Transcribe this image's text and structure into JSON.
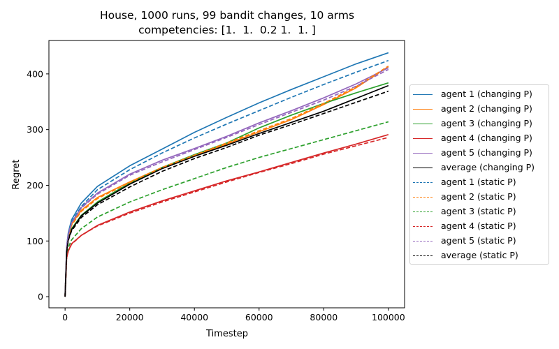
{
  "chart_data": {
    "type": "line",
    "title": "House, 1000 runs, 99 bandit changes, 10 arms",
    "subtitle": "competencies: [1.  1.  0.2 1.  1. ]",
    "xlabel": "Timestep",
    "ylabel": "Regret",
    "xlim": [
      -5000,
      105000
    ],
    "ylim": [
      -20,
      460
    ],
    "xticks": [
      0,
      20000,
      40000,
      60000,
      80000,
      100000
    ],
    "yticks": [
      0,
      100,
      200,
      300,
      400
    ],
    "grid": false,
    "legend_position": "right, outside plot",
    "x": [
      0,
      500,
      1000,
      2000,
      5000,
      10000,
      20000,
      30000,
      40000,
      50000,
      60000,
      70000,
      80000,
      90000,
      100000
    ],
    "series": [
      {
        "name": "agent 1 (changing P)",
        "color": "#1f77b4",
        "style": "solid",
        "values": [
          0,
          90,
          115,
          138,
          168,
          198,
          235,
          265,
          295,
          322,
          348,
          372,
          395,
          418,
          438
        ]
      },
      {
        "name": "agent 2 (changing P)",
        "color": "#ff7f0e",
        "style": "solid",
        "values": [
          0,
          88,
          108,
          130,
          155,
          178,
          206,
          232,
          253,
          274,
          296,
          318,
          345,
          375,
          413
        ]
      },
      {
        "name": "agent 3 (changing P)",
        "color": "#2ca02c",
        "style": "solid",
        "values": [
          0,
          85,
          105,
          122,
          146,
          170,
          204,
          232,
          255,
          276,
          303,
          326,
          347,
          366,
          384
        ]
      },
      {
        "name": "agent 4 (changing P)",
        "color": "#d62728",
        "style": "solid",
        "values": [
          0,
          70,
          82,
          95,
          110,
          128,
          152,
          172,
          190,
          208,
          224,
          241,
          258,
          274,
          291
        ]
      },
      {
        "name": "agent 5 (changing P)",
        "color": "#9467bd",
        "style": "solid",
        "values": [
          0,
          90,
          112,
          133,
          160,
          186,
          220,
          245,
          266,
          288,
          312,
          334,
          357,
          382,
          411
        ]
      },
      {
        "name": "average (changing P)",
        "color": "#000000",
        "style": "solid",
        "values": [
          0,
          82,
          103,
          120,
          145,
          168,
          202,
          230,
          252,
          272,
          293,
          313,
          333,
          356,
          379
        ]
      },
      {
        "name": "agent 1 (static P)",
        "color": "#1f77b4",
        "style": "dashed",
        "values": [
          0,
          88,
          112,
          134,
          162,
          192,
          228,
          258,
          285,
          310,
          334,
          358,
          381,
          403,
          424
        ]
      },
      {
        "name": "agent 2 (static P)",
        "color": "#ff7f0e",
        "style": "dashed",
        "values": [
          0,
          86,
          108,
          128,
          153,
          176,
          205,
          232,
          254,
          276,
          298,
          320,
          347,
          377,
          414
        ]
      },
      {
        "name": "agent 3 (static P)",
        "color": "#2ca02c",
        "style": "dashed",
        "values": [
          0,
          73,
          88,
          102,
          122,
          143,
          170,
          192,
          212,
          232,
          250,
          266,
          282,
          298,
          314
        ]
      },
      {
        "name": "agent 4 (static P)",
        "color": "#d62728",
        "style": "dashed",
        "values": [
          0,
          70,
          82,
          94,
          110,
          127,
          150,
          170,
          188,
          206,
          223,
          239,
          256,
          271,
          286
        ]
      },
      {
        "name": "agent 5 (static P)",
        "color": "#9467bd",
        "style": "dashed",
        "values": [
          0,
          89,
          111,
          132,
          159,
          184,
          218,
          242,
          264,
          286,
          309,
          331,
          353,
          378,
          408
        ]
      },
      {
        "name": "average (static P)",
        "color": "#000000",
        "style": "dashed",
        "values": [
          0,
          81,
          101,
          118,
          142,
          165,
          197,
          225,
          248,
          268,
          290,
          309,
          329,
          349,
          369
        ]
      }
    ]
  }
}
